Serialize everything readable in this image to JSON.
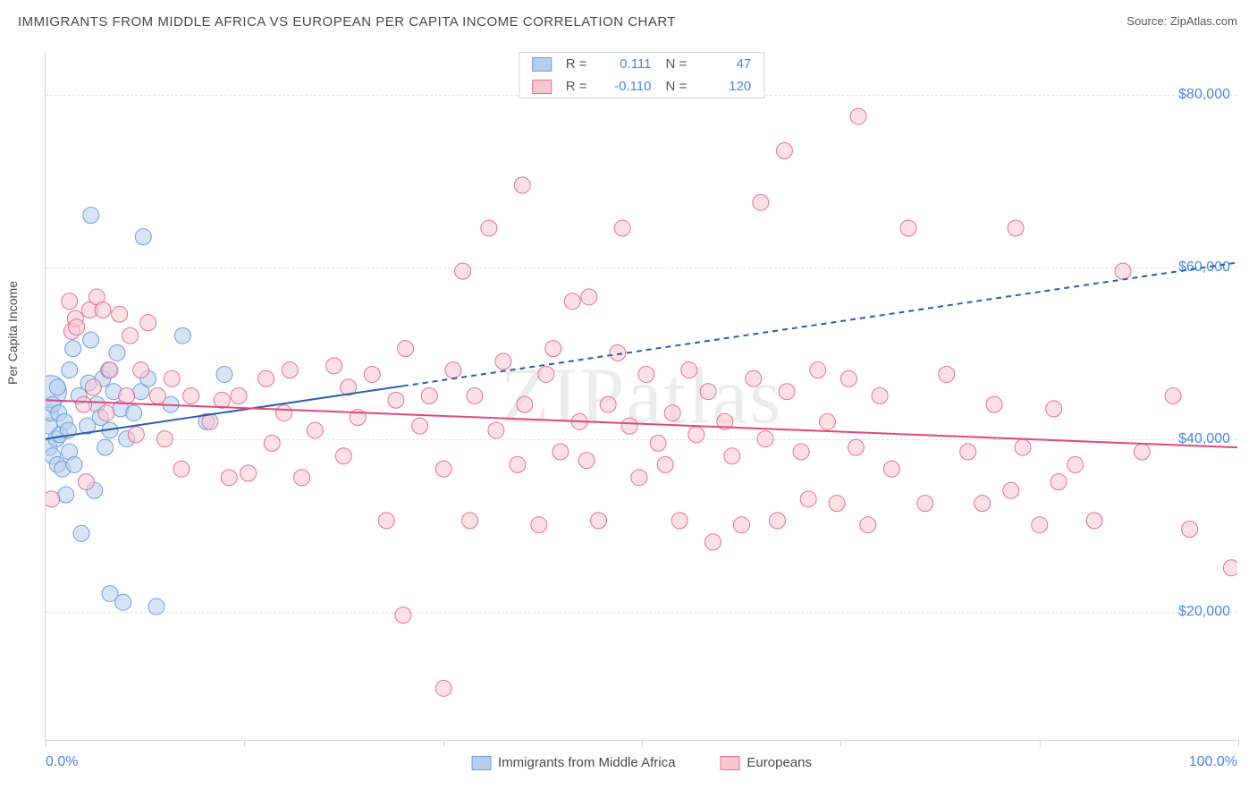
{
  "title": "IMMIGRANTS FROM MIDDLE AFRICA VS EUROPEAN PER CAPITA INCOME CORRELATION CHART",
  "source_label": "Source:",
  "source_name": "ZipAtlas.com",
  "ylabel": "Per Capita Income",
  "watermark": "ZIPatlas",
  "chart": {
    "type": "scatter",
    "xlim": [
      0,
      100
    ],
    "ylim": [
      5000,
      85000
    ],
    "x_tick_start": "0.0%",
    "x_tick_end": "100.0%",
    "y_ticks": [
      20000,
      40000,
      60000,
      80000
    ],
    "y_tick_labels": [
      "$20,000",
      "$40,000",
      "$60,000",
      "$80,000"
    ],
    "x_tick_positions": [
      0,
      16.67,
      33.33,
      50,
      66.67,
      83.33,
      100
    ],
    "background_color": "#ffffff",
    "grid_color": "#e3e3e3",
    "axis_color": "#d5d5d5",
    "tick_label_color": "#4a86e8",
    "series": [
      {
        "name": "Immigrants from Middle Africa",
        "fill": "#b7cdec",
        "stroke": "#6d9de0",
        "marker_radius": 9,
        "marker_opacity": 0.55,
        "regression": {
          "slope_y": [
            40000,
            60500
          ],
          "dash_after_x": 30,
          "line_color": "#2a5db0",
          "line_width": 2
        },
        "stats": {
          "R": "0.111",
          "N": "47"
        },
        "points": [
          {
            "x": 0.3,
            "y": 39000
          },
          {
            "x": 0.3,
            "y": 41500
          },
          {
            "x": 0.4,
            "y": 43000
          },
          {
            "x": 0.4,
            "y": 45500,
            "r": 18
          },
          {
            "x": 0.6,
            "y": 38000
          },
          {
            "x": 0.6,
            "y": 44000
          },
          {
            "x": 0.9,
            "y": 40000
          },
          {
            "x": 1.0,
            "y": 37000
          },
          {
            "x": 1.0,
            "y": 46000
          },
          {
            "x": 1.1,
            "y": 43000
          },
          {
            "x": 1.2,
            "y": 40500
          },
          {
            "x": 1.4,
            "y": 36500
          },
          {
            "x": 1.6,
            "y": 42000
          },
          {
            "x": 1.7,
            "y": 33500
          },
          {
            "x": 1.9,
            "y": 41000
          },
          {
            "x": 2.0,
            "y": 48000
          },
          {
            "x": 2.0,
            "y": 38500
          },
          {
            "x": 2.3,
            "y": 50500
          },
          {
            "x": 2.4,
            "y": 37000
          },
          {
            "x": 2.8,
            "y": 45000
          },
          {
            "x": 3.0,
            "y": 29000
          },
          {
            "x": 3.5,
            "y": 41500
          },
          {
            "x": 3.6,
            "y": 46500
          },
          {
            "x": 3.8,
            "y": 51500
          },
          {
            "x": 3.8,
            "y": 66000
          },
          {
            "x": 4.1,
            "y": 34000
          },
          {
            "x": 4.3,
            "y": 44000
          },
          {
            "x": 4.6,
            "y": 42500
          },
          {
            "x": 4.8,
            "y": 47000
          },
          {
            "x": 5.0,
            "y": 39000
          },
          {
            "x": 5.3,
            "y": 48000
          },
          {
            "x": 5.4,
            "y": 41000
          },
          {
            "x": 5.4,
            "y": 22000
          },
          {
            "x": 5.7,
            "y": 45500
          },
          {
            "x": 6.0,
            "y": 50000
          },
          {
            "x": 6.3,
            "y": 43500
          },
          {
            "x": 6.5,
            "y": 21000
          },
          {
            "x": 6.8,
            "y": 40000
          },
          {
            "x": 7.4,
            "y": 43000
          },
          {
            "x": 8.0,
            "y": 45500
          },
          {
            "x": 8.2,
            "y": 63500
          },
          {
            "x": 8.6,
            "y": 47000
          },
          {
            "x": 9.3,
            "y": 20500
          },
          {
            "x": 10.5,
            "y": 44000
          },
          {
            "x": 11.5,
            "y": 52000
          },
          {
            "x": 13.5,
            "y": 42000
          },
          {
            "x": 15.0,
            "y": 47500
          }
        ]
      },
      {
        "name": "Europeans",
        "fill": "#f9c6d4",
        "stroke": "#e66f94",
        "marker_radius": 9,
        "marker_opacity": 0.55,
        "regression": {
          "slope_y": [
            44500,
            39000
          ],
          "dash_after_x": 100,
          "line_color": "#e24878",
          "line_width": 2
        },
        "stats": {
          "R": "-0.110",
          "N": "120"
        },
        "points": [
          {
            "x": 0.5,
            "y": 33000
          },
          {
            "x": 2.0,
            "y": 56000
          },
          {
            "x": 2.2,
            "y": 52500
          },
          {
            "x": 2.5,
            "y": 54000
          },
          {
            "x": 2.6,
            "y": 53000
          },
          {
            "x": 3.2,
            "y": 44000
          },
          {
            "x": 3.4,
            "y": 35000
          },
          {
            "x": 3.7,
            "y": 55000
          },
          {
            "x": 4.0,
            "y": 46000
          },
          {
            "x": 4.3,
            "y": 56500
          },
          {
            "x": 4.8,
            "y": 55000
          },
          {
            "x": 5.1,
            "y": 43000
          },
          {
            "x": 5.4,
            "y": 48000
          },
          {
            "x": 6.2,
            "y": 54500
          },
          {
            "x": 6.8,
            "y": 45000
          },
          {
            "x": 7.1,
            "y": 52000
          },
          {
            "x": 7.6,
            "y": 40500
          },
          {
            "x": 8.0,
            "y": 48000
          },
          {
            "x": 8.6,
            "y": 53500
          },
          {
            "x": 9.4,
            "y": 45000
          },
          {
            "x": 10.0,
            "y": 40000
          },
          {
            "x": 10.6,
            "y": 47000
          },
          {
            "x": 11.4,
            "y": 36500
          },
          {
            "x": 12.2,
            "y": 45000
          },
          {
            "x": 13.8,
            "y": 42000
          },
          {
            "x": 14.8,
            "y": 44500
          },
          {
            "x": 15.4,
            "y": 35500
          },
          {
            "x": 16.2,
            "y": 45000
          },
          {
            "x": 17.0,
            "y": 36000
          },
          {
            "x": 18.5,
            "y": 47000
          },
          {
            "x": 19.0,
            "y": 39500
          },
          {
            "x": 20.0,
            "y": 43000
          },
          {
            "x": 20.5,
            "y": 48000
          },
          {
            "x": 21.5,
            "y": 35500
          },
          {
            "x": 22.6,
            "y": 41000
          },
          {
            "x": 24.2,
            "y": 48500
          },
          {
            "x": 25.0,
            "y": 38000
          },
          {
            "x": 25.4,
            "y": 46000
          },
          {
            "x": 26.2,
            "y": 42500
          },
          {
            "x": 27.4,
            "y": 47500
          },
          {
            "x": 28.6,
            "y": 30500
          },
          {
            "x": 29.4,
            "y": 44500
          },
          {
            "x": 30.0,
            "y": 19500
          },
          {
            "x": 30.2,
            "y": 50500
          },
          {
            "x": 31.4,
            "y": 41500
          },
          {
            "x": 32.2,
            "y": 45000
          },
          {
            "x": 33.4,
            "y": 36500
          },
          {
            "x": 33.4,
            "y": 11000
          },
          {
            "x": 34.2,
            "y": 48000
          },
          {
            "x": 35.0,
            "y": 59500
          },
          {
            "x": 35.6,
            "y": 30500
          },
          {
            "x": 36.0,
            "y": 45000
          },
          {
            "x": 37.2,
            "y": 64500
          },
          {
            "x": 37.8,
            "y": 41000
          },
          {
            "x": 38.4,
            "y": 49000
          },
          {
            "x": 39.6,
            "y": 37000
          },
          {
            "x": 40.0,
            "y": 69500
          },
          {
            "x": 40.2,
            "y": 44000
          },
          {
            "x": 41.4,
            "y": 30000
          },
          {
            "x": 42.0,
            "y": 47500
          },
          {
            "x": 42.6,
            "y": 50500
          },
          {
            "x": 43.2,
            "y": 38500
          },
          {
            "x": 44.2,
            "y": 56000
          },
          {
            "x": 44.8,
            "y": 42000
          },
          {
            "x": 45.4,
            "y": 37500
          },
          {
            "x": 45.6,
            "y": 56500
          },
          {
            "x": 46.4,
            "y": 30500
          },
          {
            "x": 47.2,
            "y": 44000
          },
          {
            "x": 48.0,
            "y": 50000
          },
          {
            "x": 48.4,
            "y": 64500
          },
          {
            "x": 49.0,
            "y": 41500
          },
          {
            "x": 49.8,
            "y": 35500
          },
          {
            "x": 50.4,
            "y": 47500
          },
          {
            "x": 51.4,
            "y": 39500
          },
          {
            "x": 52.0,
            "y": 37000
          },
          {
            "x": 52.6,
            "y": 43000
          },
          {
            "x": 53.2,
            "y": 30500
          },
          {
            "x": 54.0,
            "y": 48000
          },
          {
            "x": 54.6,
            "y": 40500
          },
          {
            "x": 55.6,
            "y": 45500
          },
          {
            "x": 56.0,
            "y": 28000
          },
          {
            "x": 57.0,
            "y": 42000
          },
          {
            "x": 57.6,
            "y": 38000
          },
          {
            "x": 58.4,
            "y": 30000
          },
          {
            "x": 59.4,
            "y": 47000
          },
          {
            "x": 60.0,
            "y": 67500
          },
          {
            "x": 60.4,
            "y": 40000
          },
          {
            "x": 61.4,
            "y": 30500
          },
          {
            "x": 62.0,
            "y": 73500
          },
          {
            "x": 62.2,
            "y": 45500
          },
          {
            "x": 63.4,
            "y": 38500
          },
          {
            "x": 64.0,
            "y": 33000
          },
          {
            "x": 64.8,
            "y": 48000
          },
          {
            "x": 65.6,
            "y": 42000
          },
          {
            "x": 66.4,
            "y": 32500
          },
          {
            "x": 67.4,
            "y": 47000
          },
          {
            "x": 68.0,
            "y": 39000
          },
          {
            "x": 68.2,
            "y": 77500
          },
          {
            "x": 69.0,
            "y": 30000
          },
          {
            "x": 70.0,
            "y": 45000
          },
          {
            "x": 71.0,
            "y": 36500
          },
          {
            "x": 72.4,
            "y": 64500
          },
          {
            "x": 73.8,
            "y": 32500
          },
          {
            "x": 75.6,
            "y": 47500
          },
          {
            "x": 77.4,
            "y": 38500
          },
          {
            "x": 78.6,
            "y": 32500
          },
          {
            "x": 79.6,
            "y": 44000
          },
          {
            "x": 81.0,
            "y": 34000
          },
          {
            "x": 81.4,
            "y": 64500
          },
          {
            "x": 82.0,
            "y": 39000
          },
          {
            "x": 83.4,
            "y": 30000
          },
          {
            "x": 84.6,
            "y": 43500
          },
          {
            "x": 85.0,
            "y": 35000
          },
          {
            "x": 86.4,
            "y": 37000
          },
          {
            "x": 88.0,
            "y": 30500
          },
          {
            "x": 90.4,
            "y": 59500
          },
          {
            "x": 92.0,
            "y": 38500
          },
          {
            "x": 94.6,
            "y": 45000
          },
          {
            "x": 96.0,
            "y": 29500
          },
          {
            "x": 99.5,
            "y": 25000
          }
        ]
      }
    ],
    "legend_labels": {
      "R_label": "R =",
      "N_label": "N ="
    }
  }
}
